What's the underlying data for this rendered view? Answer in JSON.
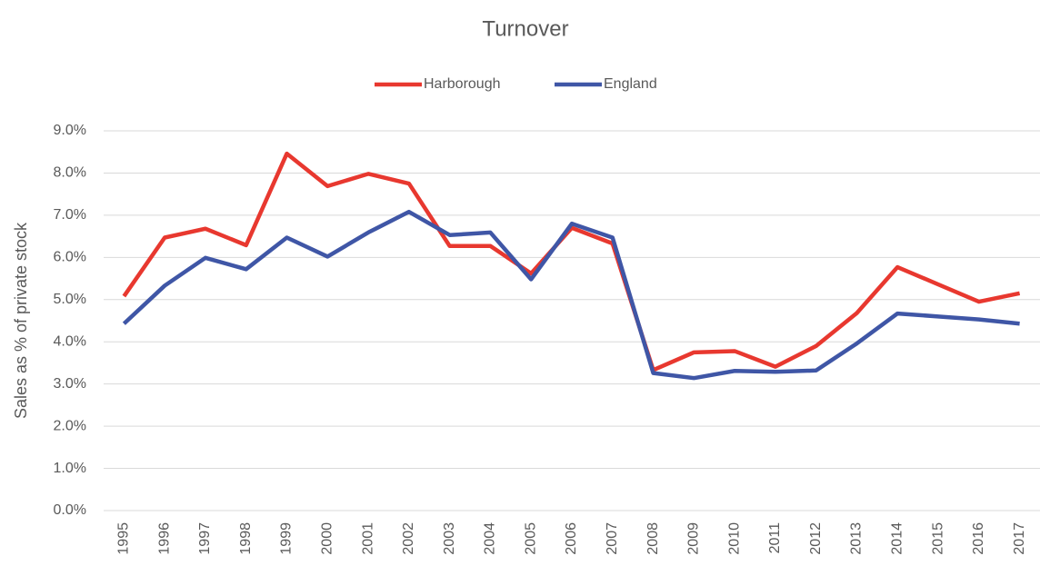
{
  "chart_data": {
    "type": "line",
    "title": "Turnover",
    "y_label": "Sales as % of private stock",
    "categories": [
      "1995",
      "1996",
      "1997",
      "1998",
      "1999",
      "2000",
      "2001",
      "2002",
      "2003",
      "2004",
      "2005",
      "2006",
      "2007",
      "2008",
      "2009",
      "2010",
      "2011",
      "2012",
      "2013",
      "2014",
      "2015",
      "2016",
      "2017"
    ],
    "series": [
      {
        "name": "Harborough",
        "color": "#e8382f",
        "values": [
          5.08,
          6.47,
          6.68,
          6.29,
          8.46,
          7.69,
          7.98,
          7.75,
          6.27,
          6.27,
          5.62,
          6.7,
          6.33,
          3.33,
          3.75,
          3.78,
          3.41,
          3.9,
          4.68,
          5.77,
          5.36,
          4.95,
          5.15
        ]
      },
      {
        "name": "England",
        "color": "#3f56a6",
        "values": [
          4.43,
          5.33,
          5.99,
          5.72,
          6.47,
          6.02,
          6.59,
          7.08,
          6.53,
          6.59,
          5.48,
          6.8,
          6.47,
          3.26,
          3.14,
          3.31,
          3.29,
          3.32,
          3.96,
          4.67,
          4.6,
          4.53,
          4.43
        ]
      }
    ],
    "ylim": [
      0,
      9
    ],
    "yticks": [
      {
        "value": 0,
        "label": "0.0%"
      },
      {
        "value": 1,
        "label": "1.0%"
      },
      {
        "value": 2,
        "label": "2.0%"
      },
      {
        "value": 3,
        "label": "3.0%"
      },
      {
        "value": 4,
        "label": "4.0%"
      },
      {
        "value": 5,
        "label": "5.0%"
      },
      {
        "value": 6,
        "label": "6.0%"
      },
      {
        "value": 7,
        "label": "7.0%"
      },
      {
        "value": 8,
        "label": "8.0%"
      },
      {
        "value": 9,
        "label": "9.0%"
      }
    ],
    "grid": true,
    "legend": "top"
  }
}
